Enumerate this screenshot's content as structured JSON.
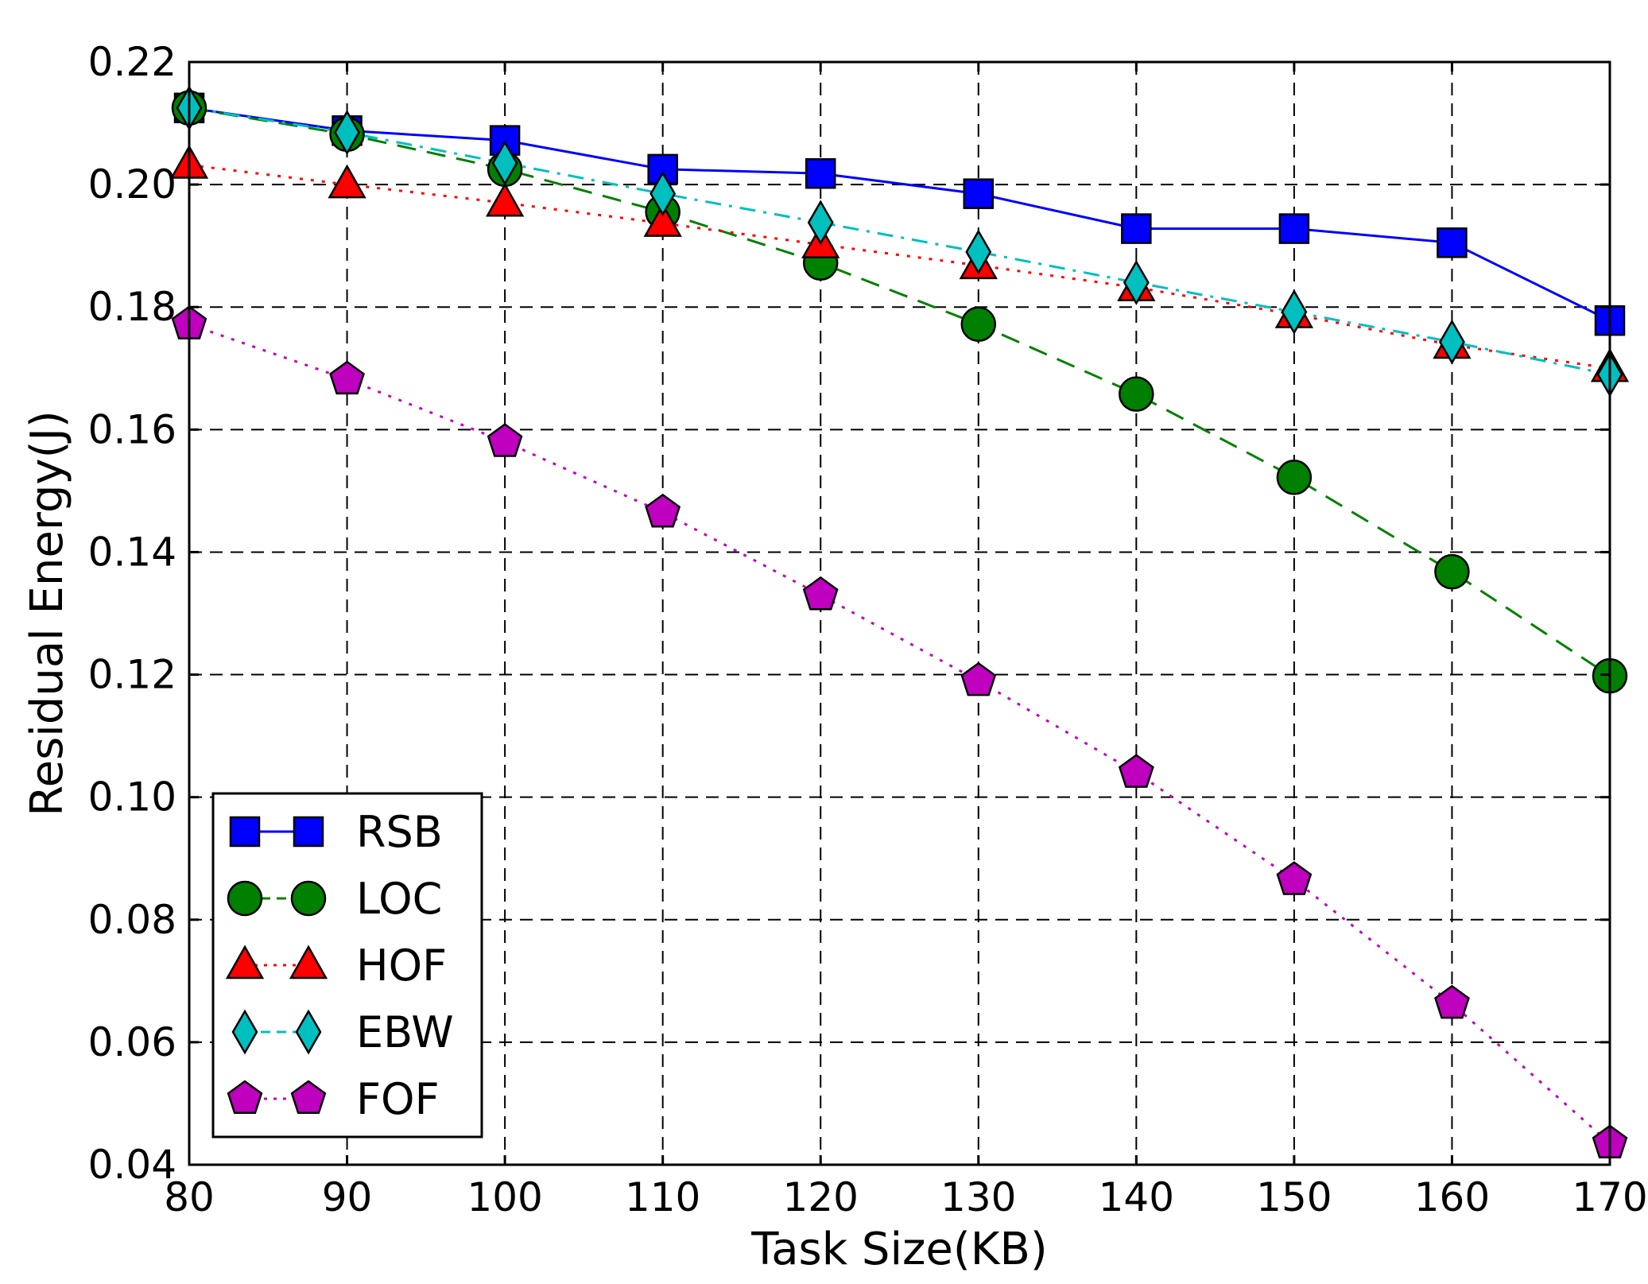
{
  "chart_data": {
    "type": "line",
    "title": "",
    "xlabel": "Task Size(KB)",
    "ylabel": "Residual Energy(J)",
    "xlim": [
      80,
      170
    ],
    "ylim": [
      0.04,
      0.22
    ],
    "grid": true,
    "legend_position": "bottom-left",
    "x": [
      80,
      90,
      100,
      110,
      120,
      130,
      140,
      150,
      160,
      170
    ],
    "x_ticks": [
      "80",
      "90",
      "100",
      "110",
      "120",
      "130",
      "140",
      "150",
      "160",
      "170"
    ],
    "y_ticks": [
      "0.04",
      "0.06",
      "0.08",
      "0.10",
      "0.12",
      "0.14",
      "0.16",
      "0.18",
      "0.20",
      "0.22"
    ],
    "series": [
      {
        "name": "RSB",
        "values": [
          0.2125,
          0.2088,
          0.2072,
          0.2025,
          0.2018,
          0.1985,
          0.1928,
          0.1928,
          0.1905,
          0.1778
        ],
        "color": "#0000ff",
        "marker": "square",
        "linestyle": "solid"
      },
      {
        "name": "LOC",
        "values": [
          0.2125,
          0.2082,
          0.2025,
          0.1955,
          0.1872,
          0.1772,
          0.1658,
          0.1522,
          0.1368,
          0.1198
        ],
        "color": "#008000",
        "marker": "circle",
        "linestyle": "dashed"
      },
      {
        "name": "HOF",
        "values": [
          0.2032,
          0.2,
          0.197,
          0.1937,
          0.1902,
          0.1868,
          0.1832,
          0.1788,
          0.1738,
          0.17
        ],
        "color": "#ff0000",
        "marker": "triangle",
        "linestyle": "dotted"
      },
      {
        "name": "EBW",
        "values": [
          0.2125,
          0.2085,
          0.2035,
          0.1985,
          0.1938,
          0.189,
          0.184,
          0.1792,
          0.1743,
          0.169
        ],
        "color": "#00bfbf",
        "marker": "diamond",
        "linestyle": "dashdot"
      },
      {
        "name": "FOF",
        "values": [
          0.1772,
          0.1682,
          0.158,
          0.1465,
          0.133,
          0.119,
          0.104,
          0.0865,
          0.0663,
          0.0435
        ],
        "color": "#bf00bf",
        "marker": "pentagon",
        "linestyle": "dotted"
      }
    ]
  }
}
